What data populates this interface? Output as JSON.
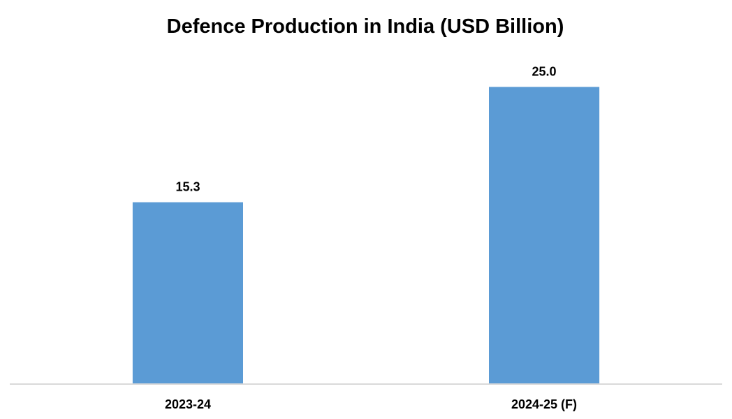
{
  "chart_data": {
    "type": "bar",
    "title": "Defence Production in India (USD Billion)",
    "categories": [
      "2023-24",
      "2024-25 (F)"
    ],
    "values": [
      15.3,
      25.0
    ],
    "value_labels": [
      "15.3",
      "25.0"
    ],
    "xlabel": "",
    "ylabel": "",
    "ylim": [
      0,
      28.2
    ],
    "grid": false,
    "legend": "none",
    "bar_color": "#5b9bd5",
    "axis_color": "#d9d9d9"
  }
}
